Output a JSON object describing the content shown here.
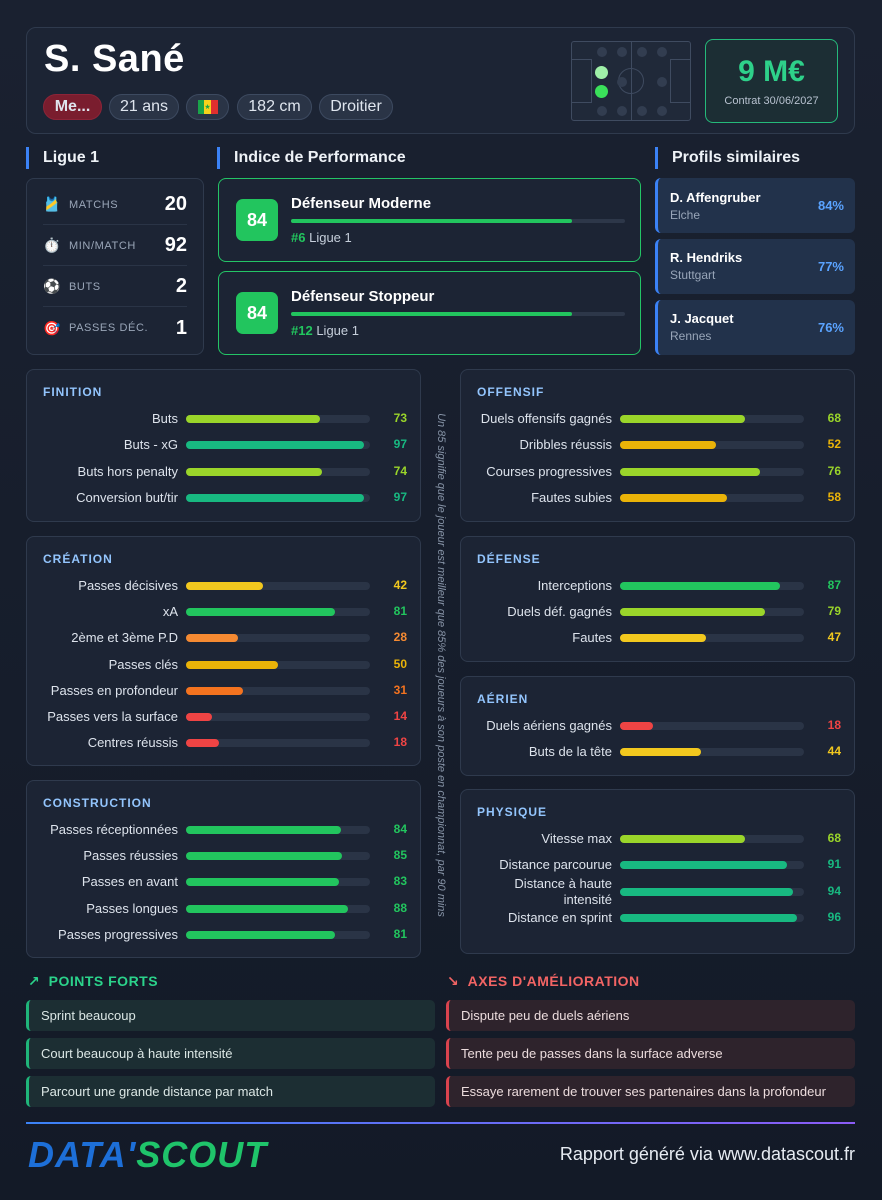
{
  "header": {
    "name": "S. Sané",
    "position": "Me...",
    "age": "21 ans",
    "flag_icon": "senegal-flag-icon",
    "height": "182 cm",
    "foot": "Droitier",
    "value": "9 M€",
    "contract": "Contrat 30/06/2027"
  },
  "league": {
    "title": "Ligue 1",
    "stats": [
      {
        "icon": "jersey-icon",
        "label": "MATCHS",
        "value": "20"
      },
      {
        "icon": "stopwatch-icon",
        "label": "MIN/MATCH",
        "value": "92"
      },
      {
        "icon": "ball-icon",
        "label": "BUTS",
        "value": "2"
      },
      {
        "icon": "target-icon",
        "label": "PASSES DÉC.",
        "value": "1"
      }
    ]
  },
  "performance": {
    "title": "Indice de Performance",
    "items": [
      {
        "score": "84",
        "name": "Défenseur Moderne",
        "fill": 0.84,
        "rank": "#6",
        "league": "Ligue 1"
      },
      {
        "score": "84",
        "name": "Défenseur Stoppeur",
        "fill": 0.84,
        "rank": "#12",
        "league": "Ligue 1"
      }
    ]
  },
  "similar": {
    "title": "Profils similaires",
    "items": [
      {
        "name": "D. Affengruber",
        "club": "Elche",
        "pct": "84%"
      },
      {
        "name": "R. Hendriks",
        "club": "Stuttgart",
        "pct": "77%"
      },
      {
        "name": "J. Jacquet",
        "club": "Rennes",
        "pct": "76%"
      }
    ]
  },
  "colors": {
    "lime": "#9ad52a",
    "teal": "#18b981",
    "green": "#22c55e",
    "yellow": "#f2c81e",
    "amber": "#eab308",
    "orange": "#f58a32",
    "deep_orange": "#f4731f",
    "red": "#ef4444"
  },
  "categories": {
    "finition": {
      "title": "FINITION",
      "metrics": [
        {
          "label": "Buts",
          "value": "73",
          "color": "#9ad52a"
        },
        {
          "label": "Buts - xG",
          "value": "97",
          "color": "#18b981"
        },
        {
          "label": "Buts hors penalty",
          "value": "74",
          "color": "#9ad52a"
        },
        {
          "label": "Conversion but/tir",
          "value": "97",
          "color": "#18b981"
        }
      ]
    },
    "creation": {
      "title": "CRÉATION",
      "metrics": [
        {
          "label": "Passes décisives",
          "value": "42",
          "color": "#f2c81e"
        },
        {
          "label": "xA",
          "value": "81",
          "color": "#22c55e"
        },
        {
          "label": "2ème et 3ème P.D",
          "value": "28",
          "color": "#f58a32"
        },
        {
          "label": "Passes clés",
          "value": "50",
          "color": "#eab308"
        },
        {
          "label": "Passes en profondeur",
          "value": "31",
          "color": "#f4731f"
        },
        {
          "label": "Passes vers la surface",
          "value": "14",
          "color": "#ef4444"
        },
        {
          "label": "Centres réussis",
          "value": "18",
          "color": "#ef4444"
        }
      ]
    },
    "construction": {
      "title": "CONSTRUCTION",
      "metrics": [
        {
          "label": "Passes réceptionnées",
          "value": "84",
          "color": "#22c55e"
        },
        {
          "label": "Passes réussies",
          "value": "85",
          "color": "#22c55e"
        },
        {
          "label": "Passes en avant",
          "value": "83",
          "color": "#22c55e"
        },
        {
          "label": "Passes longues",
          "value": "88",
          "color": "#22c55e"
        },
        {
          "label": "Passes progressives",
          "value": "81",
          "color": "#22c55e"
        }
      ]
    },
    "offensif": {
      "title": "OFFENSIF",
      "metrics": [
        {
          "label": "Duels offensifs gagnés",
          "value": "68",
          "color": "#9ad52a"
        },
        {
          "label": "Dribbles réussis",
          "value": "52",
          "color": "#eab308"
        },
        {
          "label": "Courses progressives",
          "value": "76",
          "color": "#9ad52a"
        },
        {
          "label": "Fautes subies",
          "value": "58",
          "color": "#eab308"
        }
      ]
    },
    "defense": {
      "title": "DÉFENSE",
      "metrics": [
        {
          "label": "Interceptions",
          "value": "87",
          "color": "#22c55e"
        },
        {
          "label": "Duels déf. gagnés",
          "value": "79",
          "color": "#9ad52a"
        },
        {
          "label": "Fautes",
          "value": "47",
          "color": "#f2c81e"
        }
      ]
    },
    "aerien": {
      "title": "AÉRIEN",
      "metrics": [
        {
          "label": "Duels aériens gagnés",
          "value": "18",
          "color": "#ef4444"
        },
        {
          "label": "Buts de la tête",
          "value": "44",
          "color": "#f2c81e"
        }
      ]
    },
    "physique": {
      "title": "PHYSIQUE",
      "metrics": [
        {
          "label": "Vitesse max",
          "value": "68",
          "color": "#9ad52a"
        },
        {
          "label": "Distance parcourue",
          "value": "91",
          "color": "#18b981"
        },
        {
          "label": "Distance à haute intensité",
          "value": "94",
          "color": "#18b981"
        },
        {
          "label": "Distance en sprint",
          "value": "96",
          "color": "#18b981"
        }
      ]
    }
  },
  "note": "Un 85 signifie que le joueur est meilleur que 85% des joueurs à son poste en championnat, par 90 mins",
  "strengths": {
    "title": "POINTS FORTS",
    "icon": "trending-up-icon",
    "color": "#2bd38b",
    "items": [
      "Sprint beaucoup",
      "Court beaucoup à haute intensité",
      "Parcourt une grande distance par match"
    ]
  },
  "improvements": {
    "title": "AXES D'AMÉLIORATION",
    "icon": "trending-down-icon",
    "color": "#f26464",
    "items": [
      "Dispute peu de duels aériens",
      "Tente peu de passes dans la surface adverse",
      "Essaye rarement de trouver ses partenaires dans la profondeur"
    ]
  },
  "footer": {
    "logo_left": "DATA'",
    "logo_right": "SCOUT",
    "text": "Rapport généré via www.datascout.fr"
  }
}
